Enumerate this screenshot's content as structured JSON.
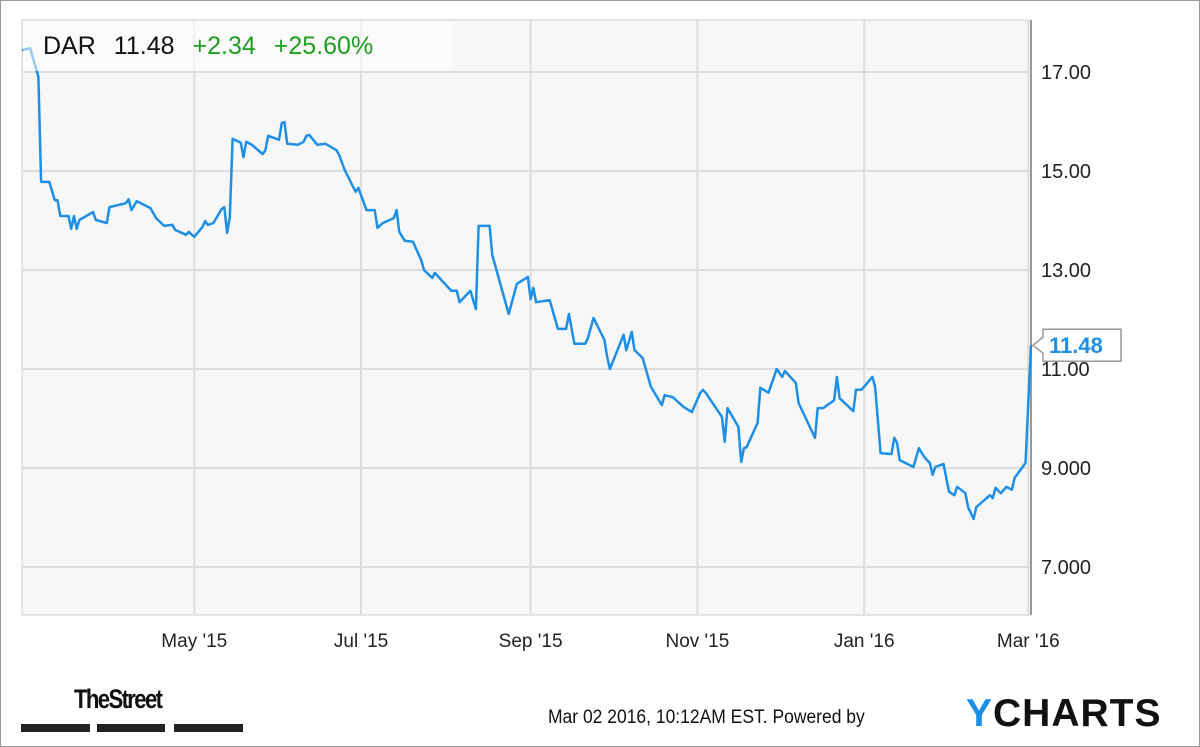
{
  "header": {
    "symbol": "DAR",
    "price": "11.48",
    "change": "+2.34",
    "change_pct": "+25.60%"
  },
  "colors": {
    "line": "#1e8fe6",
    "positive": "#1e9e1e",
    "plot_bg": "#f7f7f7",
    "grid": "#dddddd",
    "brand_y": "#1a8fe3"
  },
  "footer": {
    "publisher_logo": "TheStreet",
    "timestamp": "Mar 02 2016, 10:12AM EST.",
    "powered_by": "Powered by",
    "brand_first": "Y",
    "brand_rest": "CHARTS"
  },
  "chart_data": {
    "type": "line",
    "title": "",
    "xlabel": "",
    "ylabel": "",
    "xlim": [
      "2015-02-27",
      "2016-03-02"
    ],
    "ylim": [
      6.03,
      18.05
    ],
    "grid": true,
    "y_axis_side": "right",
    "x_ticks": [
      {
        "date": "2015-05-01",
        "label": "May '15"
      },
      {
        "date": "2015-07-01",
        "label": "Jul '15"
      },
      {
        "date": "2015-09-01",
        "label": "Sep '15"
      },
      {
        "date": "2015-11-01",
        "label": "Nov '15"
      },
      {
        "date": "2016-01-01",
        "label": "Jan '16"
      },
      {
        "date": "2016-03-01",
        "label": "Mar '16"
      }
    ],
    "y_ticks": [
      {
        "value": 17,
        "label": "17.00"
      },
      {
        "value": 15,
        "label": "15.00"
      },
      {
        "value": 13,
        "label": "13.00"
      },
      {
        "value": 11,
        "label": "11.00"
      },
      {
        "value": 9,
        "label": "9.000"
      },
      {
        "value": 7,
        "label": "7.000"
      }
    ],
    "last_value_label": "11.48",
    "series": [
      {
        "x": [
          "2015-02-27",
          "2015-03-02",
          "2015-03-05",
          "2015-03-06",
          "2015-03-09",
          "2015-03-11",
          "2015-03-12",
          "2015-03-13",
          "2015-03-16",
          "2015-03-17",
          "2015-03-18",
          "2015-03-19",
          "2015-03-20",
          "2015-03-25",
          "2015-03-26",
          "2015-03-30",
          "2015-03-31",
          "2015-04-06",
          "2015-04-07",
          "2015-04-08",
          "2015-04-10",
          "2015-04-15",
          "2015-04-17",
          "2015-04-20",
          "2015-04-23",
          "2015-04-24",
          "2015-04-28",
          "2015-04-29",
          "2015-05-01",
          "2015-05-04",
          "2015-05-05",
          "2015-05-06",
          "2015-05-08",
          "2015-05-11",
          "2015-05-12",
          "2015-05-13",
          "2015-05-14",
          "2015-05-15",
          "2015-05-18",
          "2015-05-19",
          "2015-05-20",
          "2015-05-22",
          "2015-05-26",
          "2015-05-27",
          "2015-05-28",
          "2015-06-01",
          "2015-06-02",
          "2015-06-03",
          "2015-06-04",
          "2015-06-08",
          "2015-06-10",
          "2015-06-11",
          "2015-06-12",
          "2015-06-15",
          "2015-06-18",
          "2015-06-22",
          "2015-06-23",
          "2015-06-25",
          "2015-06-29",
          "2015-06-30",
          "2015-07-03",
          "2015-07-06",
          "2015-07-07",
          "2015-07-09",
          "2015-07-13",
          "2015-07-14",
          "2015-07-15",
          "2015-07-17",
          "2015-07-20",
          "2015-07-23",
          "2015-07-24",
          "2015-07-27",
          "2015-07-28",
          "2015-07-31",
          "2015-08-03",
          "2015-08-05",
          "2015-08-06",
          "2015-08-10",
          "2015-08-12",
          "2015-08-13",
          "2015-08-17",
          "2015-08-18",
          "2015-08-24",
          "2015-08-27",
          "2015-08-31",
          "2015-09-01",
          "2015-09-02",
          "2015-09-03",
          "2015-09-08",
          "2015-09-11",
          "2015-09-14",
          "2015-09-15",
          "2015-09-17",
          "2015-09-21",
          "2015-09-22",
          "2015-09-24",
          "2015-09-28",
          "2015-09-29",
          "2015-09-30",
          "2015-10-05",
          "2015-10-06",
          "2015-10-08",
          "2015-10-09",
          "2015-10-12",
          "2015-10-15",
          "2015-10-19",
          "2015-10-20",
          "2015-10-23",
          "2015-10-27",
          "2015-10-30",
          "2015-11-02",
          "2015-11-03",
          "2015-11-04",
          "2015-11-10",
          "2015-11-11",
          "2015-11-12",
          "2015-11-16",
          "2015-11-17",
          "2015-11-18",
          "2015-11-19",
          "2015-11-23",
          "2015-11-24",
          "2015-11-27",
          "2015-11-30",
          "2015-12-02",
          "2015-12-03",
          "2015-12-07",
          "2015-12-08",
          "2015-12-14",
          "2015-12-15",
          "2015-12-17",
          "2015-12-21",
          "2015-12-22",
          "2015-12-23",
          "2015-12-28",
          "2015-12-29",
          "2015-12-31",
          "2016-01-04",
          "2016-01-05",
          "2016-01-07",
          "2016-01-11",
          "2016-01-12",
          "2016-01-13",
          "2016-01-14",
          "2016-01-19",
          "2016-01-21",
          "2016-01-23",
          "2016-01-25",
          "2016-01-26",
          "2016-01-27",
          "2016-01-30",
          "2016-02-01",
          "2016-02-03",
          "2016-02-04",
          "2016-02-07",
          "2016-02-08",
          "2016-02-10",
          "2016-02-11",
          "2016-02-16",
          "2016-02-17",
          "2016-02-18",
          "2016-02-20",
          "2016-02-22",
          "2016-02-24",
          "2016-02-25",
          "2016-02-29",
          "2016-03-02"
        ],
        "y": [
          17.44,
          17.48,
          16.9,
          14.78,
          14.78,
          14.41,
          14.41,
          14.09,
          14.09,
          13.83,
          14.09,
          13.83,
          14.01,
          14.17,
          14.01,
          13.95,
          14.27,
          14.35,
          14.43,
          14.21,
          14.39,
          14.25,
          14.05,
          13.89,
          13.91,
          13.81,
          13.71,
          13.77,
          13.67,
          13.87,
          13.99,
          13.91,
          13.95,
          14.23,
          14.27,
          13.75,
          14.07,
          15.65,
          15.57,
          15.28,
          15.59,
          15.53,
          15.34,
          15.42,
          15.71,
          15.63,
          15.97,
          15.99,
          15.55,
          15.53,
          15.59,
          15.71,
          15.73,
          15.53,
          15.55,
          15.42,
          15.32,
          15.02,
          14.58,
          14.66,
          14.21,
          14.21,
          13.85,
          13.95,
          14.05,
          14.21,
          13.77,
          13.59,
          13.57,
          13.2,
          13.0,
          12.84,
          12.94,
          12.76,
          12.58,
          12.58,
          12.35,
          12.58,
          12.21,
          13.89,
          13.89,
          13.3,
          12.11,
          12.72,
          12.86,
          12.41,
          12.64,
          12.35,
          12.39,
          11.81,
          11.81,
          12.11,
          11.51,
          11.51,
          11.63,
          12.03,
          11.59,
          11.24,
          11.0,
          11.69,
          11.38,
          11.75,
          11.38,
          11.22,
          10.64,
          10.27,
          10.47,
          10.43,
          10.23,
          10.13,
          10.51,
          10.58,
          10.52,
          10.03,
          9.53,
          10.21,
          9.83,
          9.12,
          9.4,
          9.42,
          9.91,
          10.62,
          10.52,
          11.0,
          10.84,
          10.96,
          10.72,
          10.31,
          9.61,
          10.21,
          10.21,
          10.37,
          10.84,
          10.41,
          10.15,
          10.58,
          10.58,
          10.84,
          10.64,
          9.3,
          9.28,
          9.61,
          9.51,
          9.16,
          9.02,
          9.4,
          9.22,
          9.1,
          8.86,
          9.02,
          9.08,
          8.52,
          8.45,
          8.62,
          8.49,
          8.21,
          7.97,
          8.21,
          8.45,
          8.39,
          8.6,
          8.49,
          8.62,
          8.56,
          8.8,
          9.1,
          11.48
        ]
      }
    ]
  }
}
